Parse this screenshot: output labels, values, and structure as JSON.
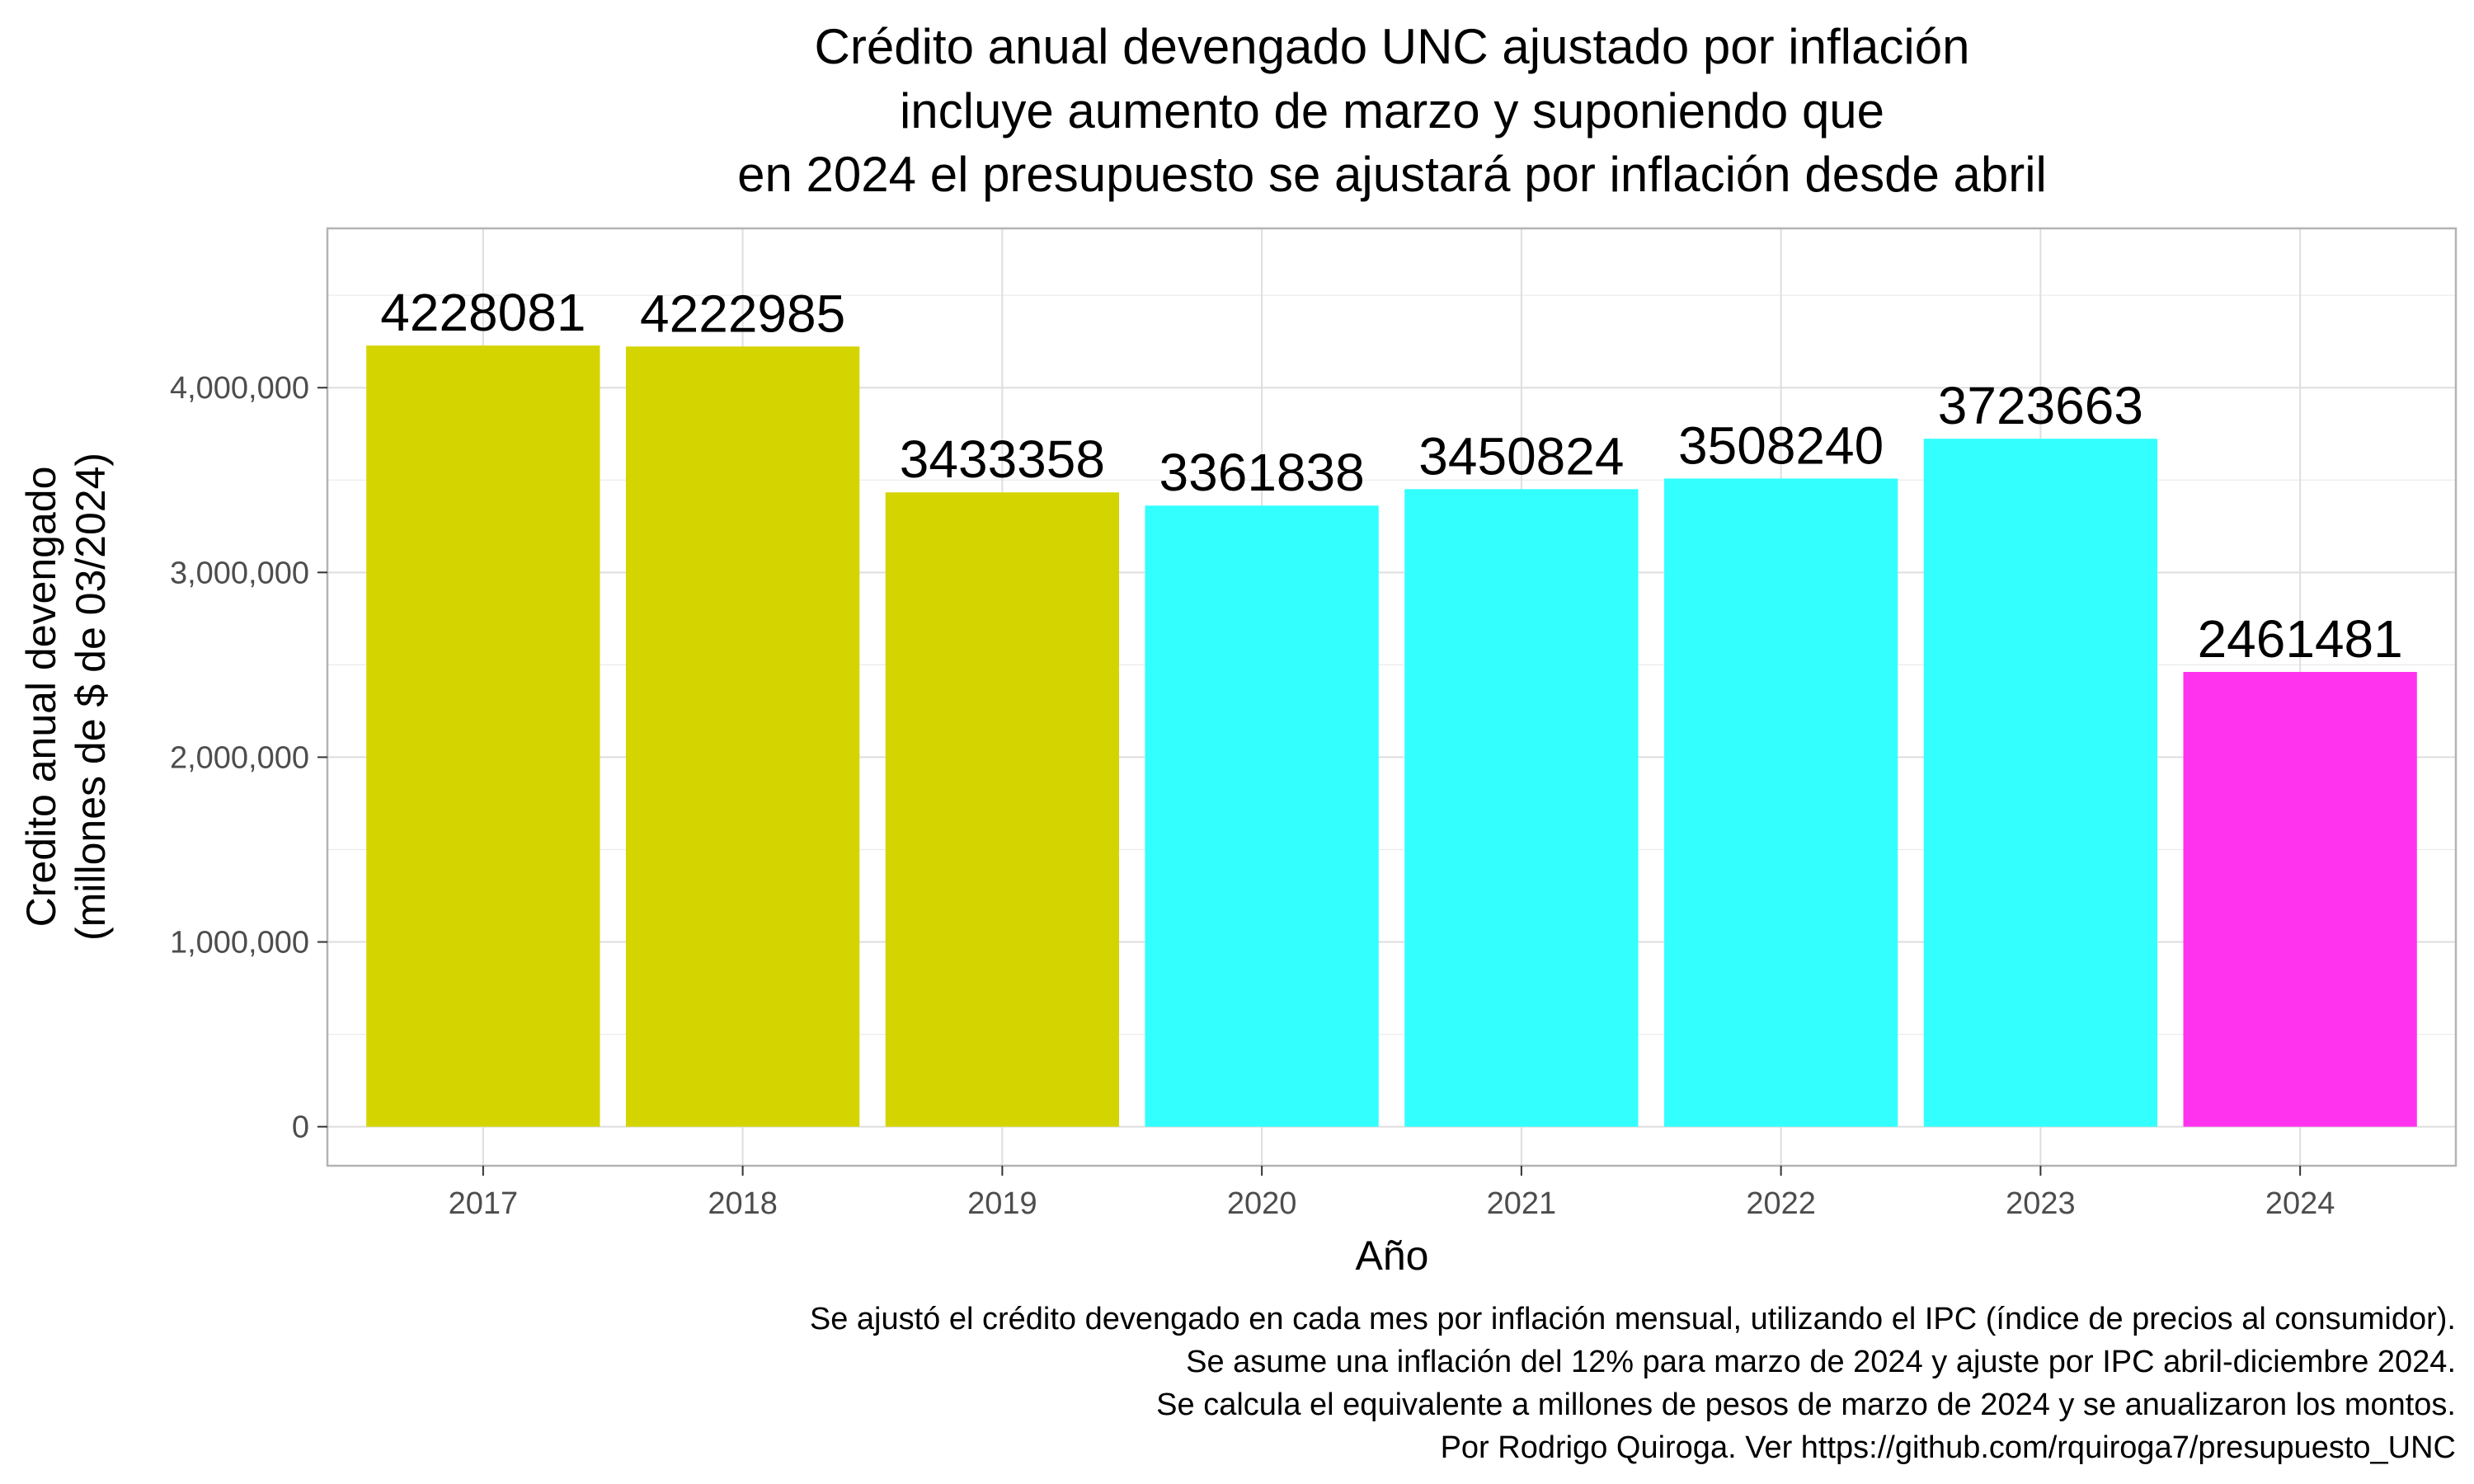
{
  "chart_data": {
    "type": "bar",
    "title": [
      "Crédito anual devengado UNC ajustado por inflación",
      "incluye aumento de marzo y suponiendo que",
      "en 2024 el presupuesto se ajustará por inflación desde abril"
    ],
    "xlabel": "Año",
    "ylabel": [
      "Credito anual devengado",
      "(millones de $ de 03/2024)"
    ],
    "categories": [
      "2017",
      "2018",
      "2019",
      "2020",
      "2021",
      "2022",
      "2023",
      "2024"
    ],
    "values": [
      4228081,
      4222985,
      3433358,
      3361838,
      3450824,
      3508240,
      3723663,
      2461481
    ],
    "data_labels": [
      "4228081",
      "4222985",
      "3433358",
      "3361838",
      "3450824",
      "3508240",
      "3723663",
      "2461481"
    ],
    "bar_colors": [
      "#D4D400",
      "#D4D400",
      "#D4D400",
      "#33FFFF",
      "#33FFFF",
      "#33FFFF",
      "#33FFFF",
      "#FF33EE"
    ],
    "yticks": [
      0,
      1000000,
      2000000,
      3000000,
      4000000
    ],
    "ytick_labels": [
      "0",
      "1,000,000",
      "2,000,000",
      "3,000,000",
      "4,000,000"
    ],
    "ylim": [
      -211404,
      4862293
    ],
    "grid": true,
    "legend": "none",
    "caption": [
      "Se ajustó el crédito devengado en cada mes por inflación mensual, utilizando el IPC (índice de precios al consumidor).",
      "Se asume una inflación del 12% para marzo de 2024 y ajuste por IPC abril-diciembre 2024.",
      "Se calcula el equivalente a millones de pesos de marzo de 2024 y se anualizaron los montos.",
      "Por Rodrigo Quiroga. Ver https://github.com/rquiroga7/presupuesto_UNC "
    ]
  }
}
